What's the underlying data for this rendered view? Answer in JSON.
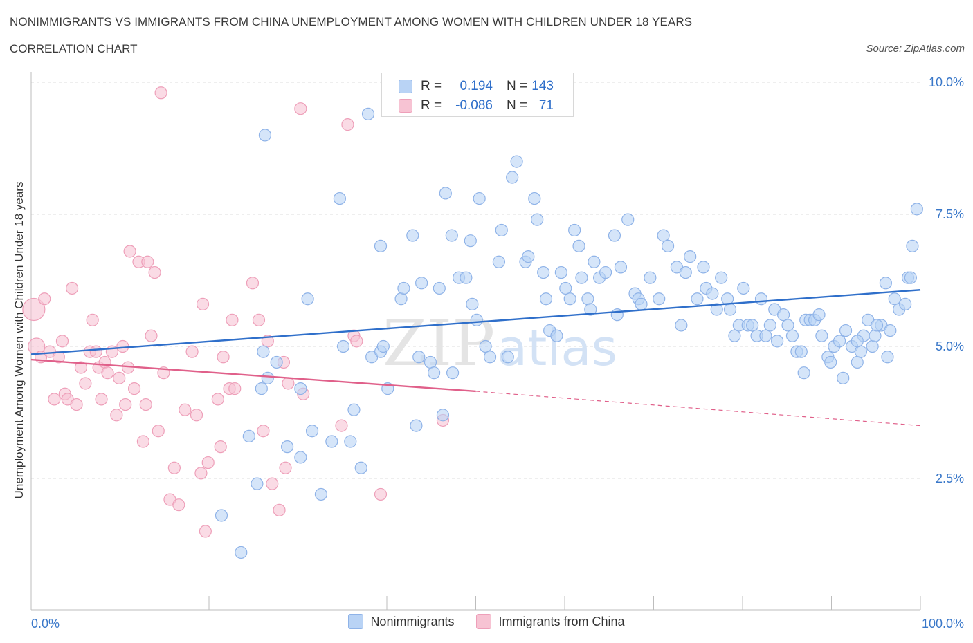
{
  "title": "NONIMMIGRANTS VS IMMIGRANTS FROM CHINA UNEMPLOYMENT AMONG WOMEN WITH CHILDREN UNDER 18 YEARS",
  "subtitle": "CORRELATION CHART",
  "source": "Source: ZipAtlas.com",
  "watermark": {
    "a": "ZIP",
    "b": "atlas"
  },
  "legend": {
    "series": [
      {
        "r_label": "R =",
        "r_value": "0.194",
        "n_label": "N =",
        "n_value": "143"
      },
      {
        "r_label": "R =",
        "r_value": "-0.086",
        "n_label": "N =",
        "n_value": "71"
      }
    ]
  },
  "colors": {
    "blue_fill": "#b9d3f5",
    "blue_stroke": "#8fb3e8",
    "blue_line": "#2f6fca",
    "pink_fill": "#f7c3d3",
    "pink_stroke": "#ee9fb9",
    "pink_line": "#e0608a",
    "grid": "#dcdcdc",
    "axis_text": "#3a78c9"
  },
  "chart_data": {
    "type": "scatter",
    "title": "NONIMMIGRANTS VS IMMIGRANTS FROM CHINA UNEMPLOYMENT AMONG WOMEN WITH CHILDREN UNDER 18 YEARS",
    "xlabel": "",
    "ylabel": "Unemployment Among Women with Children Under 18 years",
    "xlim": [
      0,
      100
    ],
    "ylim": [
      0,
      10
    ],
    "x_tick_labels": [
      "0.0%",
      "100.0%"
    ],
    "y_ticks": [
      2.5,
      5.0,
      7.5,
      10.0
    ],
    "y_tick_labels": [
      "2.5%",
      "5.0%",
      "7.5%",
      "10.0%"
    ],
    "grid": true,
    "legend_position": "top-center",
    "series": [
      {
        "name": "Nonimmigrants",
        "color": "#b9d3f5",
        "trend": {
          "x": [
            0,
            100
          ],
          "y": [
            4.85,
            6.07
          ]
        },
        "points": [
          [
            23.6,
            1.1
          ],
          [
            21.4,
            1.8
          ],
          [
            25.4,
            2.4
          ],
          [
            32.6,
            2.2
          ],
          [
            24.5,
            3.3
          ],
          [
            28.8,
            3.1
          ],
          [
            30.3,
            2.9
          ],
          [
            33.8,
            3.2
          ],
          [
            35.9,
            3.2
          ],
          [
            37.1,
            2.7
          ],
          [
            25.9,
            4.2
          ],
          [
            26.6,
            4.4
          ],
          [
            30.3,
            4.2
          ],
          [
            31.6,
            3.4
          ],
          [
            36.3,
            3.8
          ],
          [
            46.3,
            3.7
          ],
          [
            40.1,
            4.2
          ],
          [
            43.3,
            3.5
          ],
          [
            47.4,
            4.5
          ],
          [
            44.9,
            4.7
          ],
          [
            45.3,
            4.5
          ],
          [
            43.6,
            4.8
          ],
          [
            38.3,
            4.8
          ],
          [
            39.3,
            4.9
          ],
          [
            39.6,
            5.0
          ],
          [
            35.1,
            5.0
          ],
          [
            31.1,
            5.9
          ],
          [
            27.6,
            4.7
          ],
          [
            26.1,
            4.9
          ],
          [
            34.7,
            7.8
          ],
          [
            26.3,
            9.0
          ],
          [
            37.9,
            9.4
          ],
          [
            39.3,
            6.9
          ],
          [
            41.6,
            5.9
          ],
          [
            41.9,
            6.1
          ],
          [
            42.9,
            7.1
          ],
          [
            43.9,
            6.2
          ],
          [
            45.9,
            6.1
          ],
          [
            46.6,
            7.9
          ],
          [
            47.3,
            7.1
          ],
          [
            48.1,
            6.3
          ],
          [
            48.9,
            6.3
          ],
          [
            49.4,
            7.0
          ],
          [
            49.6,
            5.8
          ],
          [
            50.1,
            5.5
          ],
          [
            50.4,
            7.8
          ],
          [
            51.1,
            5.0
          ],
          [
            51.6,
            4.8
          ],
          [
            52.6,
            6.6
          ],
          [
            52.9,
            7.2
          ],
          [
            53.6,
            4.8
          ],
          [
            54.6,
            8.5
          ],
          [
            54.1,
            8.2
          ],
          [
            55.6,
            6.6
          ],
          [
            55.9,
            6.7
          ],
          [
            56.6,
            7.8
          ],
          [
            56.9,
            7.4
          ],
          [
            57.6,
            6.4
          ],
          [
            57.9,
            5.9
          ],
          [
            58.3,
            5.3
          ],
          [
            59.1,
            5.2
          ],
          [
            59.6,
            6.4
          ],
          [
            60.1,
            6.1
          ],
          [
            60.6,
            5.9
          ],
          [
            61.1,
            7.2
          ],
          [
            61.6,
            6.9
          ],
          [
            61.9,
            6.3
          ],
          [
            62.6,
            5.9
          ],
          [
            62.9,
            5.7
          ],
          [
            63.3,
            6.6
          ],
          [
            63.9,
            6.3
          ],
          [
            64.6,
            6.4
          ],
          [
            65.6,
            7.1
          ],
          [
            65.9,
            5.6
          ],
          [
            66.3,
            6.5
          ],
          [
            67.1,
            7.4
          ],
          [
            67.9,
            6.0
          ],
          [
            68.3,
            5.9
          ],
          [
            68.6,
            5.8
          ],
          [
            69.6,
            6.3
          ],
          [
            70.6,
            5.9
          ],
          [
            71.1,
            7.1
          ],
          [
            71.6,
            6.9
          ],
          [
            72.6,
            6.5
          ],
          [
            73.1,
            5.4
          ],
          [
            73.6,
            6.4
          ],
          [
            74.1,
            6.7
          ],
          [
            74.9,
            5.9
          ],
          [
            75.6,
            6.5
          ],
          [
            75.9,
            6.1
          ],
          [
            76.6,
            6.0
          ],
          [
            77.1,
            5.7
          ],
          [
            77.6,
            6.3
          ],
          [
            78.3,
            5.9
          ],
          [
            78.6,
            5.7
          ],
          [
            79.1,
            5.2
          ],
          [
            79.6,
            5.4
          ],
          [
            80.1,
            6.1
          ],
          [
            80.6,
            5.4
          ],
          [
            81.1,
            5.4
          ],
          [
            81.6,
            5.2
          ],
          [
            82.6,
            5.2
          ],
          [
            83.1,
            5.4
          ],
          [
            82.1,
            5.9
          ],
          [
            83.6,
            5.7
          ],
          [
            83.9,
            5.1
          ],
          [
            84.6,
            5.6
          ],
          [
            85.1,
            5.4
          ],
          [
            85.6,
            5.2
          ],
          [
            86.1,
            4.9
          ],
          [
            86.6,
            4.9
          ],
          [
            86.9,
            4.5
          ],
          [
            87.1,
            5.5
          ],
          [
            87.6,
            5.5
          ],
          [
            88.1,
            5.5
          ],
          [
            88.6,
            5.6
          ],
          [
            88.9,
            5.2
          ],
          [
            89.6,
            4.8
          ],
          [
            89.9,
            4.7
          ],
          [
            90.3,
            5.0
          ],
          [
            90.9,
            5.1
          ],
          [
            91.3,
            4.4
          ],
          [
            91.6,
            5.3
          ],
          [
            92.3,
            5.0
          ],
          [
            92.9,
            4.7
          ],
          [
            93.3,
            4.9
          ],
          [
            93.6,
            5.2
          ],
          [
            94.1,
            5.5
          ],
          [
            94.6,
            5.0
          ],
          [
            94.9,
            5.2
          ],
          [
            95.6,
            5.4
          ],
          [
            96.3,
            4.8
          ],
          [
            96.6,
            5.3
          ],
          [
            97.1,
            5.9
          ],
          [
            97.6,
            5.7
          ],
          [
            98.3,
            5.8
          ],
          [
            98.6,
            6.3
          ],
          [
            98.9,
            6.3
          ],
          [
            99.1,
            6.9
          ],
          [
            99.6,
            7.6
          ],
          [
            92.9,
            5.1
          ],
          [
            95.1,
            5.4
          ],
          [
            96.1,
            6.2
          ]
        ]
      },
      {
        "name": "Immigrants from China",
        "color": "#f7c3d3",
        "trend": {
          "x": [
            0,
            50
          ],
          "y": [
            4.75,
            4.15
          ]
        },
        "trend_extension": {
          "x": [
            50,
            100
          ],
          "y": [
            4.15,
            3.5
          ]
        },
        "points": [
          [
            0.3,
            5.7
          ],
          [
            0.6,
            5.0
          ],
          [
            1.1,
            4.8
          ],
          [
            1.5,
            5.9
          ],
          [
            2.1,
            4.9
          ],
          [
            2.6,
            4.0
          ],
          [
            3.1,
            4.8
          ],
          [
            3.5,
            5.1
          ],
          [
            3.8,
            4.1
          ],
          [
            4.1,
            4.0
          ],
          [
            4.6,
            6.1
          ],
          [
            5.1,
            3.9
          ],
          [
            5.6,
            4.6
          ],
          [
            6.1,
            4.3
          ],
          [
            6.6,
            4.9
          ],
          [
            6.9,
            5.5
          ],
          [
            7.3,
            4.9
          ],
          [
            7.6,
            4.6
          ],
          [
            7.9,
            4.0
          ],
          [
            8.3,
            4.7
          ],
          [
            8.6,
            4.5
          ],
          [
            9.1,
            4.9
          ],
          [
            9.6,
            3.7
          ],
          [
            9.9,
            4.4
          ],
          [
            10.3,
            5.0
          ],
          [
            10.6,
            3.9
          ],
          [
            10.9,
            4.6
          ],
          [
            11.1,
            6.8
          ],
          [
            11.6,
            4.2
          ],
          [
            12.1,
            6.6
          ],
          [
            12.6,
            3.2
          ],
          [
            12.9,
            3.9
          ],
          [
            13.1,
            6.6
          ],
          [
            13.5,
            5.2
          ],
          [
            13.9,
            6.4
          ],
          [
            14.3,
            3.4
          ],
          [
            14.6,
            9.8
          ],
          [
            14.9,
            4.5
          ],
          [
            15.6,
            2.1
          ],
          [
            16.1,
            2.7
          ],
          [
            16.6,
            2.0
          ],
          [
            17.3,
            3.8
          ],
          [
            18.1,
            4.9
          ],
          [
            18.6,
            3.7
          ],
          [
            19.1,
            2.6
          ],
          [
            19.3,
            5.8
          ],
          [
            19.6,
            1.5
          ],
          [
            19.9,
            2.8
          ],
          [
            21.3,
            3.1
          ],
          [
            21.6,
            4.8
          ],
          [
            22.3,
            4.2
          ],
          [
            22.6,
            5.5
          ],
          [
            22.9,
            4.2
          ],
          [
            24.9,
            6.2
          ],
          [
            25.6,
            5.5
          ],
          [
            26.1,
            3.4
          ],
          [
            26.6,
            5.1
          ],
          [
            27.1,
            2.4
          ],
          [
            27.9,
            1.9
          ],
          [
            28.4,
            4.7
          ],
          [
            28.6,
            2.7
          ],
          [
            28.9,
            4.3
          ],
          [
            30.3,
            9.5
          ],
          [
            30.6,
            4.1
          ],
          [
            34.9,
            3.5
          ],
          [
            35.6,
            9.2
          ],
          [
            36.3,
            5.2
          ],
          [
            36.6,
            5.1
          ],
          [
            39.3,
            2.2
          ],
          [
            46.3,
            3.6
          ],
          [
            21.0,
            4.0
          ]
        ]
      }
    ]
  }
}
